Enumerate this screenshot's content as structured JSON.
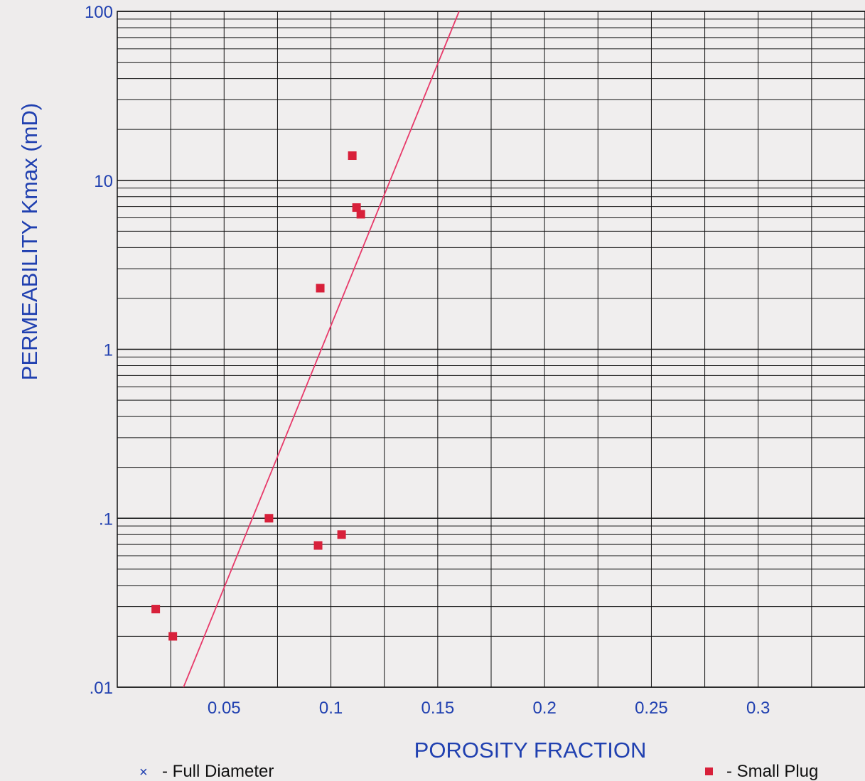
{
  "chart_data": {
    "type": "scatter",
    "xlabel": "POROSITY FRACTION",
    "ylabel": "PERMEABILITY  Kmax (mD)",
    "x_scale": "linear",
    "y_scale": "log",
    "xlim": [
      0.0,
      0.35
    ],
    "ylim": [
      0.01,
      100
    ],
    "x_ticks": [
      {
        "value": 0.05,
        "label": "0.05"
      },
      {
        "value": 0.1,
        "label": "0.1"
      },
      {
        "value": 0.15,
        "label": "0.15"
      },
      {
        "value": 0.2,
        "label": "0.2"
      },
      {
        "value": 0.25,
        "label": "0.25"
      },
      {
        "value": 0.3,
        "label": "0.3"
      }
    ],
    "y_ticks": [
      {
        "value": 100,
        "label": "100"
      },
      {
        "value": 10,
        "label": "10"
      },
      {
        "value": 1,
        "label": "1"
      },
      {
        "value": 0.1,
        "label": ".1"
      },
      {
        "value": 0.01,
        "label": ".01"
      }
    ],
    "grid": true,
    "series": [
      {
        "name": "- Small Plug",
        "marker": "square",
        "color": "#d8203a",
        "points": [
          {
            "x": 0.018,
            "y": 0.029
          },
          {
            "x": 0.026,
            "y": 0.02
          },
          {
            "x": 0.071,
            "y": 0.1
          },
          {
            "x": 0.094,
            "y": 0.069
          },
          {
            "x": 0.095,
            "y": 2.3
          },
          {
            "x": 0.105,
            "y": 0.08
          },
          {
            "x": 0.11,
            "y": 14.0
          },
          {
            "x": 0.112,
            "y": 6.9
          },
          {
            "x": 0.114,
            "y": 6.3
          }
        ]
      },
      {
        "name": "- Full Diameter",
        "marker": "x",
        "color": "#2040b0",
        "points": []
      }
    ],
    "trend_line": {
      "color": "#e83a6a",
      "points": [
        {
          "x": 0.031,
          "y": 0.01
        },
        {
          "x": 0.16,
          "y": 100
        }
      ]
    },
    "legend": [
      {
        "marker": "x",
        "label": "- Full Diameter",
        "position": "bottom-left"
      },
      {
        "marker": "square",
        "label": "- Small Plug",
        "position": "bottom-right"
      }
    ],
    "colors": {
      "axis_text": "#2040b0",
      "grid": "#111111",
      "marker": "#d8203a",
      "trend": "#e83a6a"
    }
  }
}
